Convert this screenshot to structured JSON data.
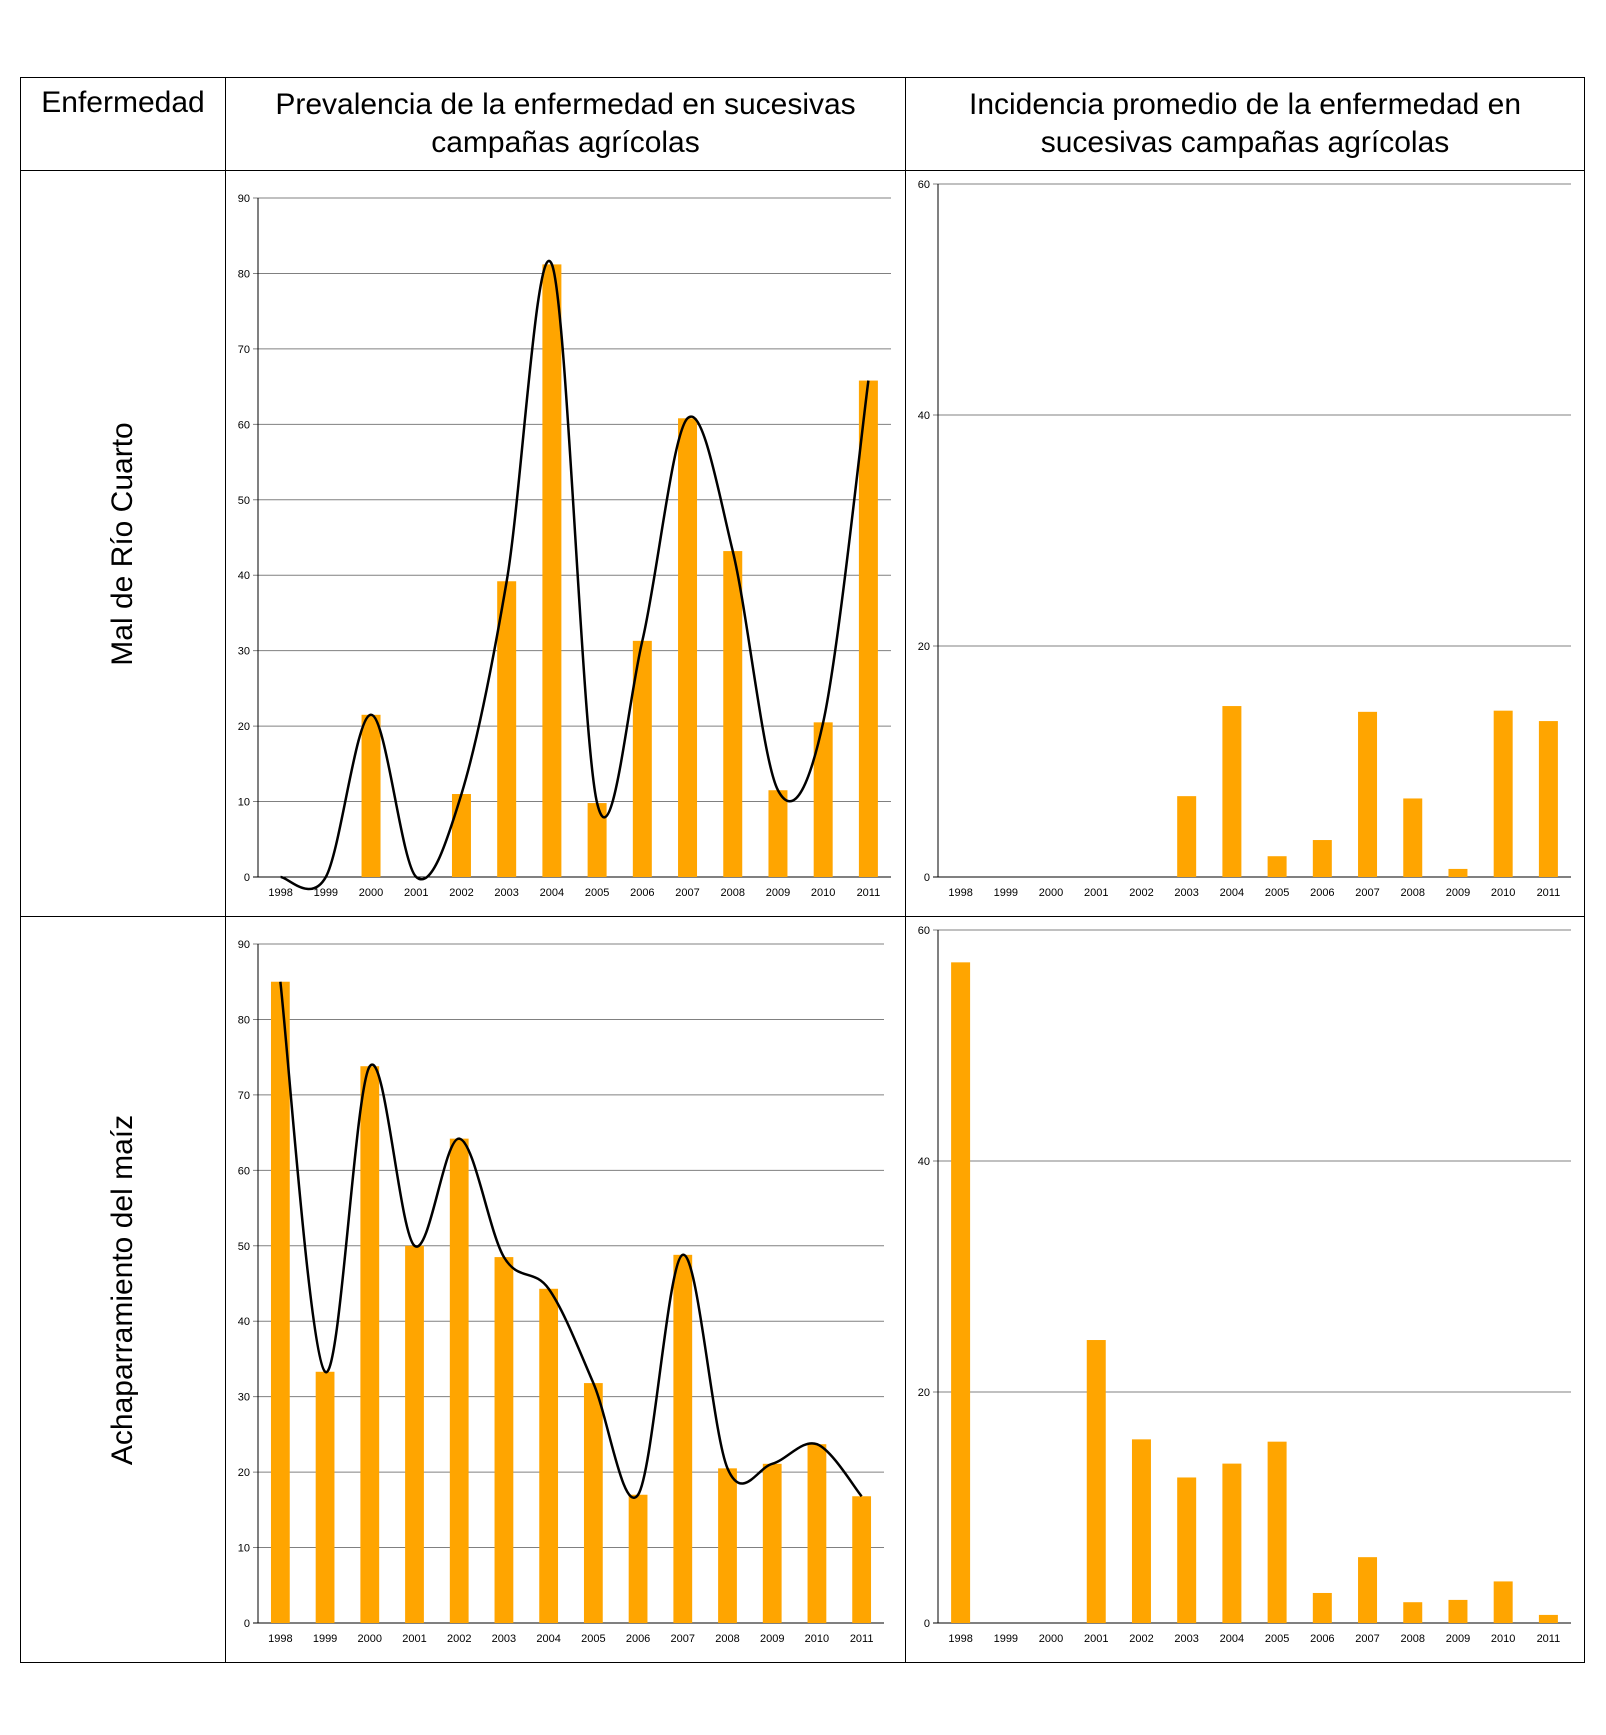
{
  "header": {
    "col1": "Enfermedad",
    "col2_line1": "Prevalencia de la enfermedad en sucesivas",
    "col2_line2": "campañas agrícolas",
    "col3_line1": "Incidencia promedio de la  enfermedad en",
    "col3_line2": "sucesivas campañas agrícolas"
  },
  "rows": [
    {
      "label": "Mal de Río Cuarto"
    },
    {
      "label": "Achaparramiento del maíz"
    }
  ],
  "colors": {
    "bar": "#FFA500",
    "line": "#000000",
    "grid": "#808080"
  },
  "chart_data": [
    {
      "id": "mrc-prevalencia",
      "type": "bar",
      "categories": [
        "1998",
        "1999",
        "2000",
        "2001",
        "2002",
        "2003",
        "2004",
        "2005",
        "2006",
        "2007",
        "2008",
        "2009",
        "2010",
        "2011"
      ],
      "values": [
        0,
        0,
        21.5,
        0,
        11,
        39.2,
        81.2,
        9.8,
        31.3,
        60.8,
        43.2,
        11.5,
        20.5,
        65.8
      ],
      "trend_line": true,
      "ylim": [
        0,
        90
      ],
      "yticks": [
        0,
        10,
        20,
        30,
        40,
        50,
        60,
        70,
        80,
        90
      ],
      "grid": true
    },
    {
      "id": "mrc-incidencia",
      "type": "bar",
      "categories": [
        "1998",
        "1999",
        "2000",
        "2001",
        "2002",
        "2003",
        "2004",
        "2005",
        "2006",
        "2007",
        "2008",
        "2009",
        "2010",
        "2011"
      ],
      "values": [
        0,
        0,
        0,
        0,
        0,
        7,
        14.8,
        1.8,
        3.2,
        14.3,
        6.8,
        0.7,
        14.4,
        13.5
      ],
      "trend_line": false,
      "ylim": [
        0,
        60
      ],
      "yticks": [
        0,
        20,
        40,
        60
      ],
      "grid": true
    },
    {
      "id": "ach-prevalencia",
      "type": "bar",
      "categories": [
        "1998",
        "1999",
        "2000",
        "2001",
        "2002",
        "2003",
        "2004",
        "2005",
        "2006",
        "2007",
        "2008",
        "2009",
        "2010",
        "2011"
      ],
      "values": [
        85,
        33.3,
        73.8,
        50,
        64.2,
        48.5,
        44.3,
        31.8,
        17,
        48.8,
        20.5,
        21.1,
        23.7,
        16.8
      ],
      "trend_line": true,
      "ylim": [
        0,
        90
      ],
      "yticks": [
        0,
        10,
        20,
        30,
        40,
        50,
        60,
        70,
        80,
        90
      ],
      "grid": true
    },
    {
      "id": "ach-incidencia",
      "type": "bar",
      "categories": [
        "1998",
        "1999",
        "2000",
        "2001",
        "2002",
        "2003",
        "2004",
        "2005",
        "2006",
        "2007",
        "2008",
        "2009",
        "2010",
        "2011"
      ],
      "values": [
        57.2,
        0,
        0,
        24.5,
        15.9,
        12.6,
        13.8,
        15.7,
        2.6,
        5.7,
        1.8,
        2,
        3.6,
        0.7
      ],
      "trend_line": false,
      "ylim": [
        0,
        60
      ],
      "yticks": [
        0,
        20,
        40,
        60
      ],
      "grid": true
    }
  ]
}
